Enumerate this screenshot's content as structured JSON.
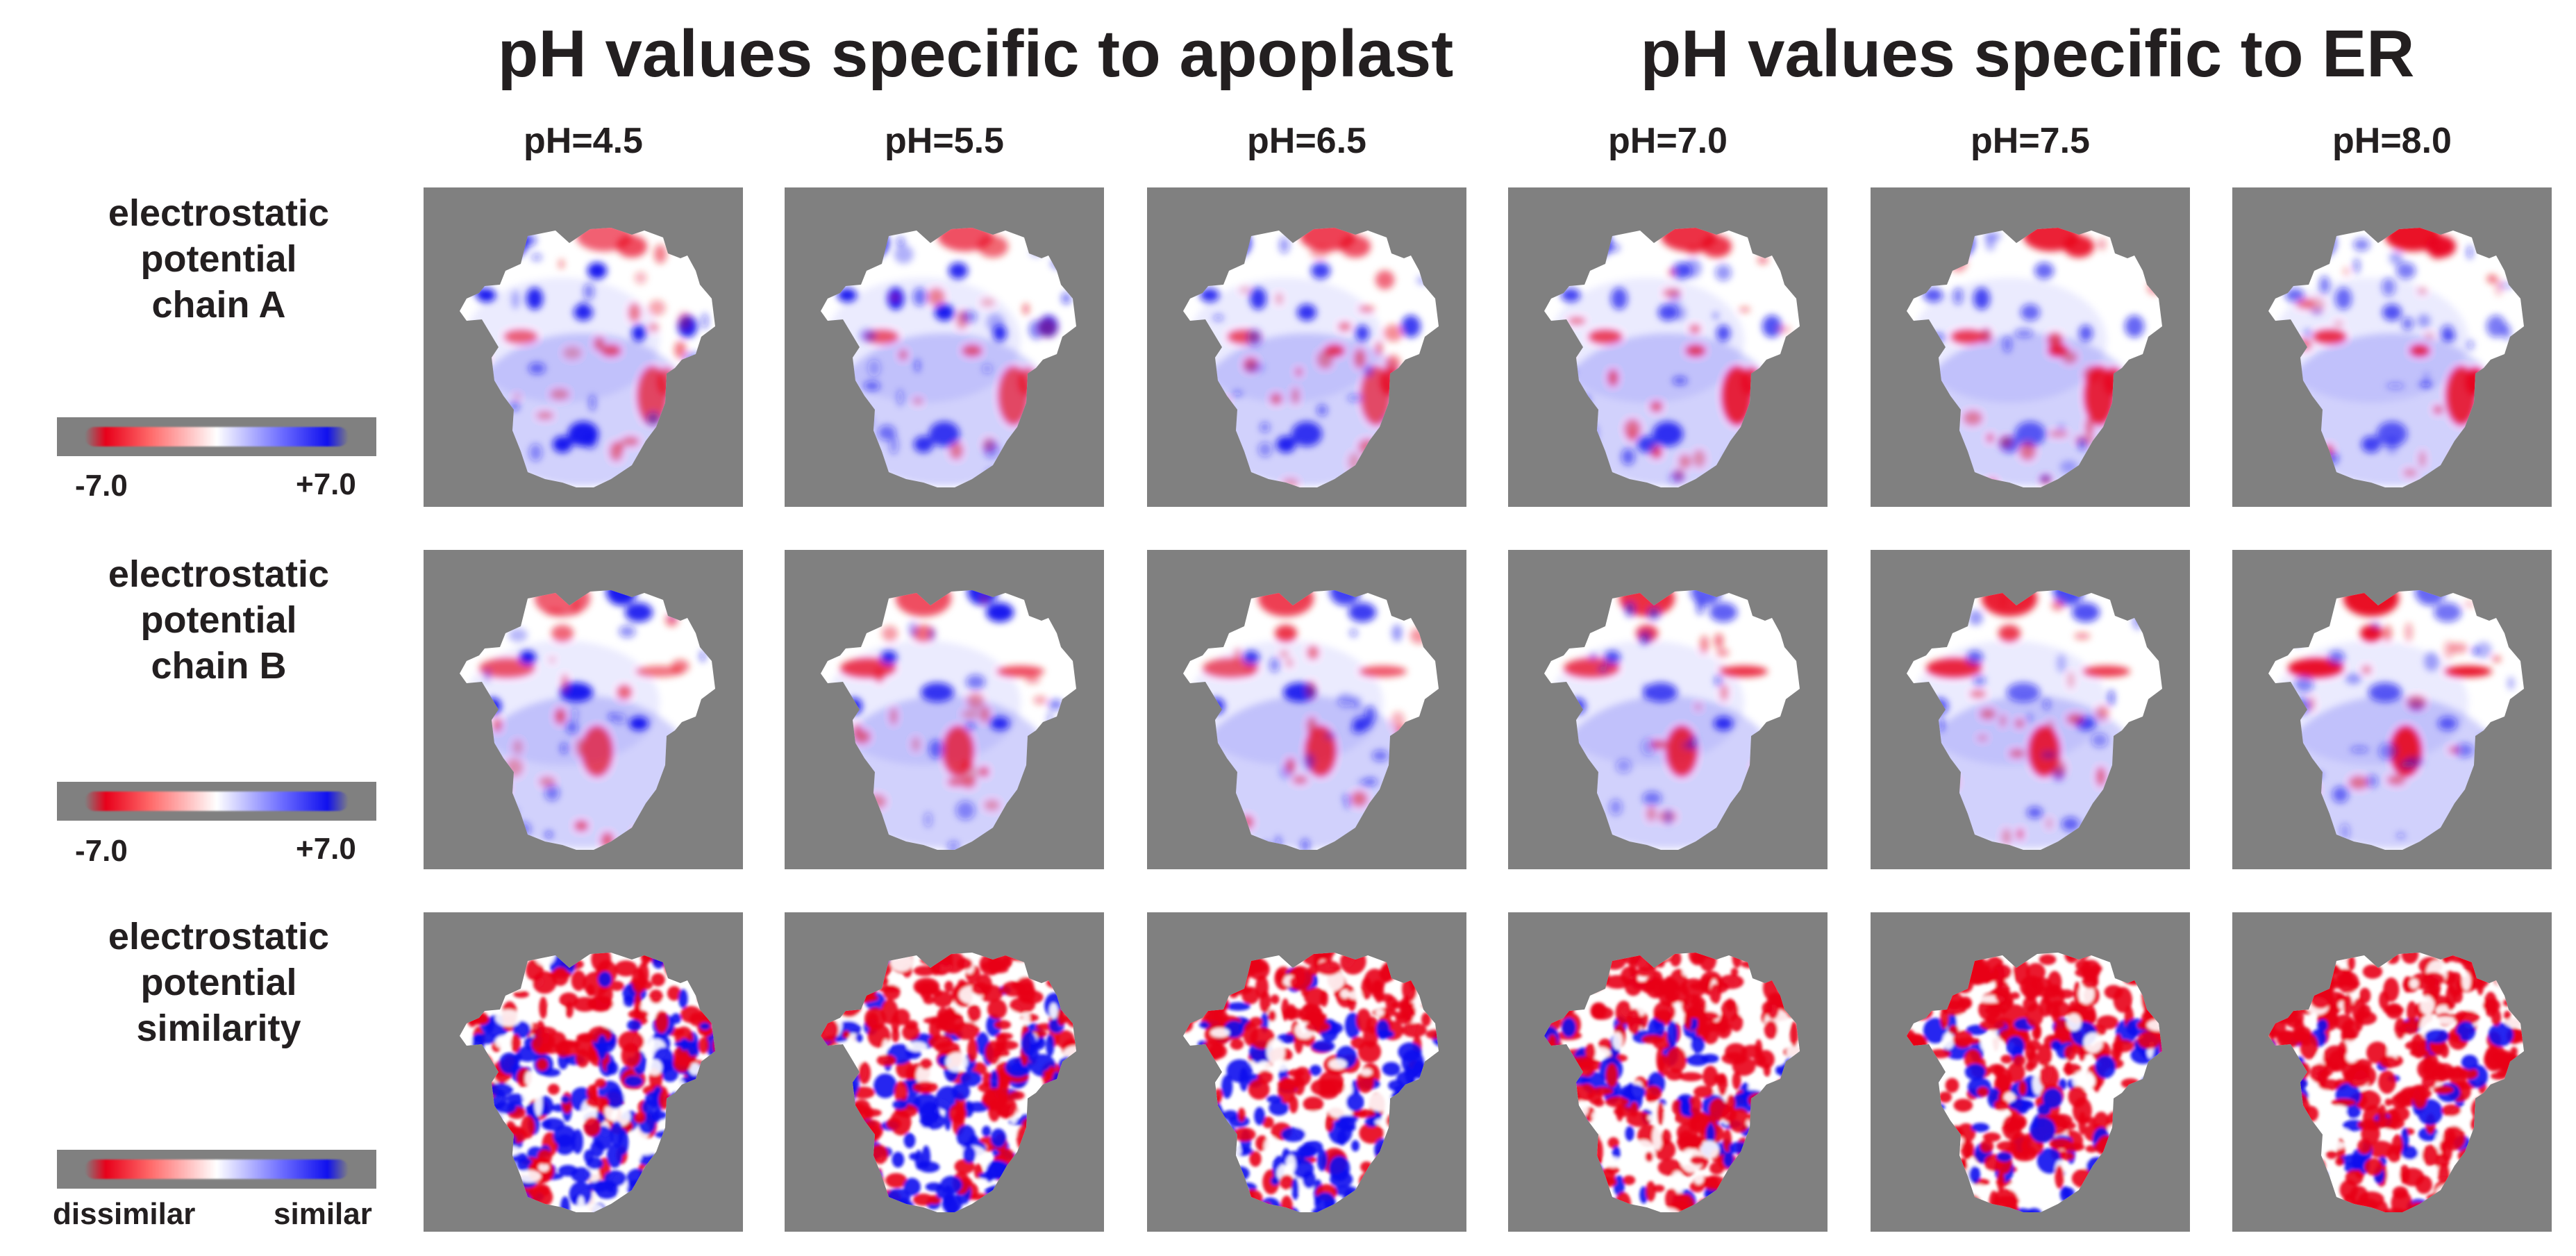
{
  "titles": {
    "apoplast": "pH values specific to apoplast",
    "er": "pH values specific to ER"
  },
  "columns": [
    "pH=4.5",
    "pH=5.5",
    "pH=6.5",
    "pH=7.0",
    "pH=7.5",
    "pH=8.0"
  ],
  "rows": [
    {
      "label_lines": [
        "electrostatic",
        "potential",
        "chain A"
      ],
      "scale": {
        "left": "-7.0",
        "right": "+7.0"
      }
    },
    {
      "label_lines": [
        "electrostatic",
        "potential",
        "chain B"
      ],
      "scale": {
        "left": "-7.0",
        "right": "+7.0"
      }
    },
    {
      "label_lines": [
        "electrostatic",
        "potential",
        "similarity"
      ],
      "scale": {
        "left": "dissimilar",
        "right": "similar"
      }
    }
  ],
  "colors": {
    "background": "#808080",
    "negative": "#e8001a",
    "neutral": "#ffffff",
    "positive": "#1010ee"
  }
}
